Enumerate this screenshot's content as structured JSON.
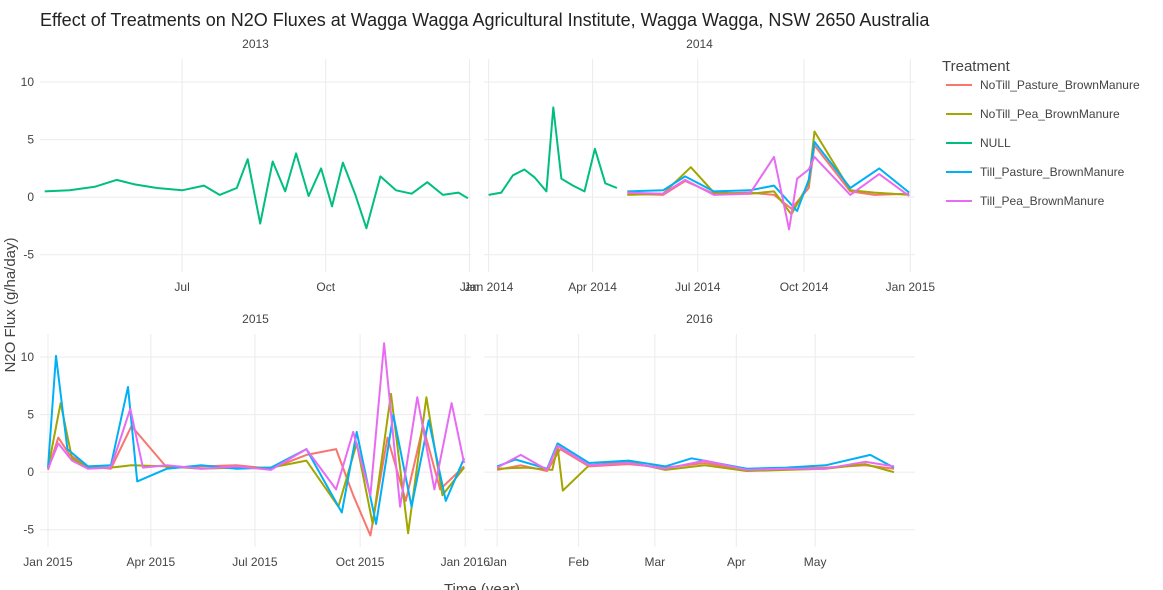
{
  "chart_data": {
    "type": "line",
    "title": "Effect of Treatments on N2O Fluxes at Wagga Wagga Agricultural Institute, Wagga Wagga, NSW 2650 Australia",
    "xlabel": "Time (year)",
    "ylabel": "N2O Flux (g/ha/day)",
    "ylim": [
      -6.5,
      12
    ],
    "yticks": [
      -5,
      0,
      5,
      10
    ],
    "grid": true,
    "legend": {
      "title": "Treatment",
      "placement": "right",
      "entries": [
        {
          "name": "NoTill_Pasture_BrownManure",
          "color": "#F8766D"
        },
        {
          "name": "NoTill_Pea_BrownManure",
          "color": "#A3A500"
        },
        {
          "name": "NULL",
          "color": "#00BF7D"
        },
        {
          "name": "Till_Pasture_BrownManure",
          "color": "#00B0F6"
        },
        {
          "name": "Till_Pea_BrownManure",
          "color": "#E76BF3"
        }
      ]
    },
    "facets": [
      {
        "name": "2013",
        "xrange": [
          "2013-04-01",
          "2014-01-02"
        ],
        "xticks": [
          {
            "date": "2013-07-01",
            "label": "Jul"
          },
          {
            "date": "2013-10-01",
            "label": "Oct"
          },
          {
            "date": "2014-01-01",
            "label": "Jan"
          }
        ],
        "series": [
          {
            "name": "NULL",
            "x": [
              "2013-04-04",
              "2013-04-20",
              "2013-05-06",
              "2013-05-20",
              "2013-06-01",
              "2013-06-15",
              "2013-07-01",
              "2013-07-15",
              "2013-07-25",
              "2013-08-05",
              "2013-08-12",
              "2013-08-20",
              "2013-08-28",
              "2013-09-05",
              "2013-09-12",
              "2013-09-20",
              "2013-09-28",
              "2013-10-05",
              "2013-10-12",
              "2013-10-20",
              "2013-10-27",
              "2013-11-05",
              "2013-11-15",
              "2013-11-25",
              "2013-12-05",
              "2013-12-15",
              "2013-12-25",
              "2013-12-31"
            ],
            "y": [
              0.5,
              0.6,
              0.9,
              1.5,
              1.1,
              0.8,
              0.6,
              1.0,
              0.2,
              0.8,
              3.3,
              -2.3,
              3.1,
              0.5,
              3.8,
              0.1,
              2.5,
              -0.8,
              3.0,
              0.2,
              -2.7,
              1.8,
              0.6,
              0.3,
              1.3,
              0.2,
              0.4,
              -0.1
            ]
          }
        ]
      },
      {
        "name": "2014",
        "xrange": [
          "2013-12-28",
          "2015-01-05"
        ],
        "xticks": [
          {
            "date": "2014-01-01",
            "label": "Jan 2014"
          },
          {
            "date": "2014-04-01",
            "label": "Apr 2014"
          },
          {
            "date": "2014-07-01",
            "label": "Jul 2014"
          },
          {
            "date": "2014-10-01",
            "label": "Oct 2014"
          },
          {
            "date": "2015-01-01",
            "label": "Jan 2015"
          }
        ],
        "series": [
          {
            "name": "NULL",
            "x": [
              "2014-01-01",
              "2014-01-12",
              "2014-01-22",
              "2014-02-01",
              "2014-02-10",
              "2014-02-20",
              "2014-02-26",
              "2014-03-05",
              "2014-03-15",
              "2014-03-25",
              "2014-04-03",
              "2014-04-12",
              "2014-04-22"
            ],
            "y": [
              0.2,
              0.4,
              1.9,
              2.4,
              1.7,
              0.5,
              7.8,
              1.6,
              1.0,
              0.5,
              4.2,
              1.2,
              0.8
            ]
          },
          {
            "name": "NoTill_Pasture_BrownManure",
            "x": [
              "2014-05-01",
              "2014-06-01",
              "2014-06-20",
              "2014-07-15",
              "2014-08-15",
              "2014-09-05",
              "2014-09-20",
              "2014-10-05",
              "2014-10-10",
              "2014-11-10",
              "2014-12-01",
              "2014-12-31"
            ],
            "y": [
              0.3,
              0.2,
              1.4,
              0.3,
              0.4,
              0.2,
              -1.0,
              0.8,
              4.5,
              0.5,
              0.2,
              0.3
            ]
          },
          {
            "name": "NoTill_Pea_BrownManure",
            "x": [
              "2014-05-01",
              "2014-06-01",
              "2014-06-25",
              "2014-07-15",
              "2014-08-15",
              "2014-09-05",
              "2014-09-20",
              "2014-10-05",
              "2014-10-10",
              "2014-11-10",
              "2014-12-01",
              "2014-12-31"
            ],
            "y": [
              0.2,
              0.3,
              2.6,
              0.4,
              0.3,
              0.5,
              -1.5,
              1.2,
              5.7,
              0.6,
              0.4,
              0.2
            ]
          },
          {
            "name": "Till_Pasture_BrownManure",
            "x": [
              "2014-05-01",
              "2014-06-01",
              "2014-06-20",
              "2014-07-15",
              "2014-08-15",
              "2014-09-05",
              "2014-09-25",
              "2014-10-05",
              "2014-10-10",
              "2014-11-10",
              "2014-12-05",
              "2014-12-31"
            ],
            "y": [
              0.5,
              0.6,
              1.8,
              0.5,
              0.6,
              1.0,
              -1.2,
              1.5,
              4.8,
              0.8,
              2.5,
              0.4
            ]
          },
          {
            "name": "Till_Pea_BrownManure",
            "x": [
              "2014-05-01",
              "2014-06-01",
              "2014-06-20",
              "2014-07-15",
              "2014-08-15",
              "2014-09-05",
              "2014-09-18",
              "2014-09-25",
              "2014-10-05",
              "2014-10-10",
              "2014-11-10",
              "2014-12-05",
              "2014-12-31"
            ],
            "y": [
              0.4,
              0.3,
              1.5,
              0.2,
              0.3,
              3.5,
              -2.8,
              1.6,
              2.4,
              3.5,
              0.2,
              2.0,
              0.1
            ]
          }
        ]
      },
      {
        "name": "2015",
        "xrange": [
          "2014-12-25",
          "2016-01-06"
        ],
        "xticks": [
          {
            "date": "2015-01-01",
            "label": "Jan 2015"
          },
          {
            "date": "2015-04-01",
            "label": "Apr 2015"
          },
          {
            "date": "2015-07-01",
            "label": "Jul 2015"
          },
          {
            "date": "2015-10-01",
            "label": "Oct 2015"
          },
          {
            "date": "2016-01-01",
            "label": "Jan 2016"
          }
        ],
        "series": [
          {
            "name": "NoTill_Pasture_BrownManure",
            "x": [
              "2015-01-01",
              "2015-01-10",
              "2015-01-20",
              "2015-02-05",
              "2015-02-25",
              "2015-03-15",
              "2015-04-15",
              "2015-05-15",
              "2015-06-15",
              "2015-07-15",
              "2015-08-15",
              "2015-09-10",
              "2015-09-25",
              "2015-10-10",
              "2015-10-25",
              "2015-11-10",
              "2015-11-25",
              "2015-12-10",
              "2015-12-31"
            ],
            "y": [
              0.2,
              3.0,
              1.5,
              0.5,
              0.3,
              4.0,
              0.4,
              0.5,
              0.6,
              0.3,
              1.5,
              2.0,
              -2.0,
              -5.5,
              3.0,
              -2.5,
              4.0,
              -1.5,
              0.5
            ]
          },
          {
            "name": "NoTill_Pea_BrownManure",
            "x": [
              "2015-01-01",
              "2015-01-12",
              "2015-01-22",
              "2015-02-05",
              "2015-02-25",
              "2015-03-15",
              "2015-04-15",
              "2015-05-15",
              "2015-06-15",
              "2015-07-15",
              "2015-08-15",
              "2015-09-12",
              "2015-09-28",
              "2015-10-12",
              "2015-10-28",
              "2015-11-12",
              "2015-11-28",
              "2015-12-12",
              "2015-12-31"
            ],
            "y": [
              0.3,
              6.0,
              1.2,
              0.4,
              0.4,
              0.6,
              0.5,
              0.3,
              0.4,
              0.4,
              1.0,
              -3.0,
              2.5,
              -4.5,
              6.8,
              -5.3,
              6.5,
              -2.0,
              0.4
            ]
          },
          {
            "name": "Till_Pasture_BrownManure",
            "x": [
              "2015-01-01",
              "2015-01-08",
              "2015-01-18",
              "2015-02-05",
              "2015-02-25",
              "2015-03-12",
              "2015-03-20",
              "2015-04-15",
              "2015-05-15",
              "2015-06-15",
              "2015-07-15",
              "2015-08-15",
              "2015-09-15",
              "2015-09-28",
              "2015-10-15",
              "2015-10-30",
              "2015-11-15",
              "2015-11-30",
              "2015-12-15",
              "2015-12-31"
            ],
            "y": [
              0.4,
              10.1,
              2.0,
              0.5,
              0.6,
              7.4,
              -0.8,
              0.3,
              0.6,
              0.3,
              0.4,
              2.0,
              -3.5,
              3.5,
              -4.5,
              5.0,
              -3.0,
              4.5,
              -2.5,
              1.2
            ]
          },
          {
            "name": "Till_Pea_BrownManure",
            "x": [
              "2015-01-01",
              "2015-01-10",
              "2015-01-22",
              "2015-02-05",
              "2015-02-25",
              "2015-03-14",
              "2015-03-25",
              "2015-04-15",
              "2015-05-15",
              "2015-06-15",
              "2015-07-15",
              "2015-08-15",
              "2015-09-10",
              "2015-09-25",
              "2015-10-10",
              "2015-10-22",
              "2015-11-05",
              "2015-11-20",
              "2015-12-05",
              "2015-12-20",
              "2015-12-31"
            ],
            "y": [
              0.3,
              2.5,
              1.0,
              0.3,
              0.4,
              5.5,
              0.4,
              0.6,
              0.3,
              0.5,
              0.2,
              2.0,
              -1.5,
              3.5,
              -2.0,
              11.2,
              -3.0,
              6.5,
              -1.5,
              6.0,
              0.8
            ]
          }
        ]
      },
      {
        "name": "2016",
        "xrange": [
          "2015-12-27",
          "2016-06-08"
        ],
        "xticks": [
          {
            "date": "2016-01-01",
            "label": "Jan"
          },
          {
            "date": "2016-02-01",
            "label": "Feb"
          },
          {
            "date": "2016-03-01",
            "label": "Mar"
          },
          {
            "date": "2016-04-01",
            "label": "Apr"
          },
          {
            "date": "2016-05-01",
            "label": "May"
          }
        ],
        "series": [
          {
            "name": "NoTill_Pasture_BrownManure",
            "x": [
              "2016-01-01",
              "2016-01-10",
              "2016-01-20",
              "2016-01-25",
              "2016-02-05",
              "2016-02-20",
              "2016-03-05",
              "2016-03-20",
              "2016-04-05",
              "2016-04-20",
              "2016-05-05",
              "2016-05-20",
              "2016-05-31"
            ],
            "y": [
              0.2,
              0.6,
              0.1,
              2.0,
              0.5,
              0.7,
              0.4,
              0.8,
              0.2,
              0.3,
              0.4,
              0.6,
              0.3
            ]
          },
          {
            "name": "NoTill_Pea_BrownManure",
            "x": [
              "2016-01-01",
              "2016-01-12",
              "2016-01-22",
              "2016-01-24",
              "2016-01-26",
              "2016-02-05",
              "2016-02-20",
              "2016-03-05",
              "2016-03-20",
              "2016-04-05",
              "2016-04-20",
              "2016-05-05",
              "2016-05-20",
              "2016-05-31"
            ],
            "y": [
              0.3,
              0.4,
              0.2,
              2.2,
              -1.6,
              0.6,
              0.9,
              0.2,
              0.6,
              0.1,
              0.2,
              0.3,
              0.7,
              0.0
            ]
          },
          {
            "name": "Till_Pasture_BrownManure",
            "x": [
              "2016-01-01",
              "2016-01-08",
              "2016-01-20",
              "2016-01-24",
              "2016-02-05",
              "2016-02-20",
              "2016-03-05",
              "2016-03-15",
              "2016-04-05",
              "2016-04-20",
              "2016-05-05",
              "2016-05-22",
              "2016-05-31"
            ],
            "y": [
              0.5,
              1.1,
              0.3,
              2.5,
              0.8,
              1.0,
              0.5,
              1.2,
              0.3,
              0.4,
              0.6,
              1.5,
              0.4
            ]
          },
          {
            "name": "Till_Pea_BrownManure",
            "x": [
              "2016-01-01",
              "2016-01-10",
              "2016-01-20",
              "2016-01-24",
              "2016-02-05",
              "2016-02-20",
              "2016-03-05",
              "2016-03-20",
              "2016-04-05",
              "2016-04-20",
              "2016-05-05",
              "2016-05-20",
              "2016-05-31"
            ],
            "y": [
              0.4,
              1.5,
              0.2,
              2.3,
              0.6,
              0.8,
              0.3,
              1.0,
              0.2,
              0.3,
              0.3,
              0.9,
              0.5
            ]
          }
        ]
      }
    ]
  }
}
